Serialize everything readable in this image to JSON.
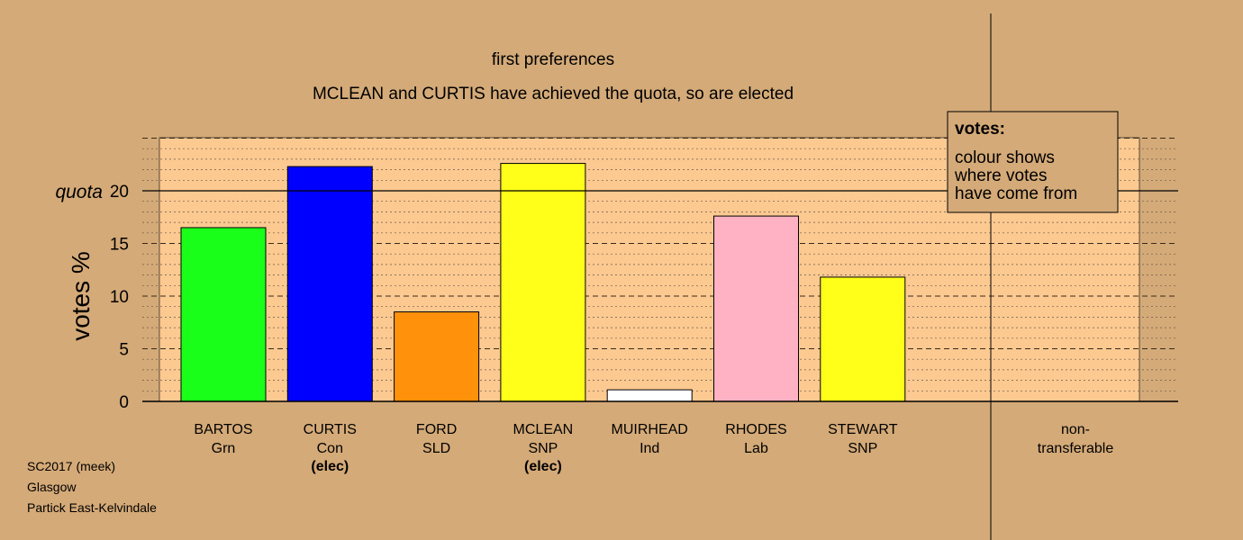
{
  "colors": {
    "background": "#d4aa78",
    "plot_background": "#fcc991",
    "axis": "#000000"
  },
  "footer": {
    "line1": "SC2017 (meek)",
    "line2": "Glasgow",
    "line3": "Partick East-Kelvindale"
  },
  "chart_data": {
    "type": "bar",
    "title": "first preferences",
    "subtitle": "MCLEAN and CURTIS have achieved the quota, so are elected",
    "ylabel": "votes %",
    "quota_label": "quota",
    "quota": 20,
    "ylim": [
      0,
      25
    ],
    "yticks": [
      0,
      5,
      10,
      15,
      20
    ],
    "grid": true,
    "legend": {
      "title": "votes:",
      "lines": [
        "colour shows",
        "where votes",
        "have come from"
      ],
      "placement": "top-right"
    },
    "bars": [
      {
        "name": "BARTOS",
        "party": "Grn",
        "value": 16.5,
        "color": "#1aff1a",
        "note": ""
      },
      {
        "name": "CURTIS",
        "party": "Con",
        "value": 22.3,
        "color": "#0000ff",
        "note": "(elec)"
      },
      {
        "name": "FORD",
        "party": "SLD",
        "value": 8.5,
        "color": "#ff920a",
        "note": ""
      },
      {
        "name": "MCLEAN",
        "party": "SNP",
        "value": 22.6,
        "color": "#ffff1a",
        "note": "(elec)"
      },
      {
        "name": "MUIRHEAD",
        "party": "Ind",
        "value": 1.1,
        "color": "#ffffff",
        "note": ""
      },
      {
        "name": "RHODES",
        "party": "Lab",
        "value": 17.6,
        "color": "#ffb2c4",
        "note": ""
      },
      {
        "name": "STEWART",
        "party": "SNP",
        "value": 11.8,
        "color": "#ffff1a",
        "note": ""
      }
    ],
    "nontransferable": {
      "label_line1": "non-",
      "label_line2": "transferable",
      "value": 0
    }
  }
}
